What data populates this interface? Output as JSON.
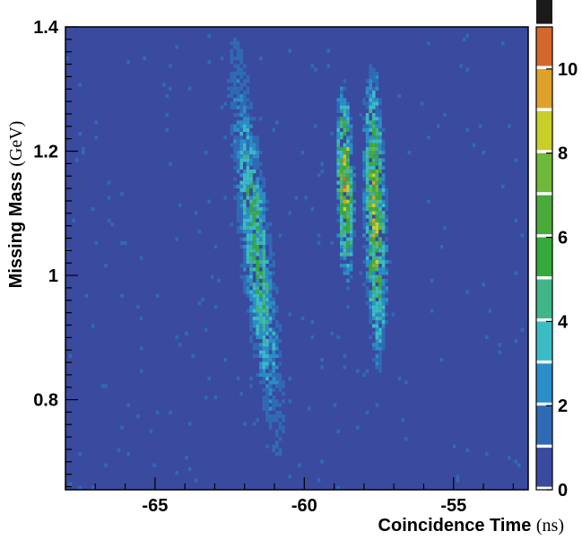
{
  "chart_data": {
    "type": "heatmap",
    "xlabel": "Coincidence Time",
    "xlabel_unit": "(ns)",
    "ylabel": "Missing Mass",
    "ylabel_unit": "(GeV)",
    "xlim": [
      -68,
      -52.5
    ],
    "ylim": [
      0.655,
      1.4
    ],
    "x_ticks": [
      {
        "value": -65,
        "label": "-65"
      },
      {
        "value": -60,
        "label": "-60"
      },
      {
        "value": -55,
        "label": "-55"
      }
    ],
    "y_ticks": [
      {
        "value": 0.8,
        "label": "0.8"
      },
      {
        "value": 1.0,
        "label": "1"
      },
      {
        "value": 1.2,
        "label": "1.2"
      },
      {
        "value": 1.4,
        "label": "1.4"
      }
    ],
    "colorbar": {
      "range": [
        0,
        11
      ],
      "ticks": [
        {
          "value": 0,
          "label": "0"
        },
        {
          "value": 2,
          "label": "2"
        },
        {
          "value": 4,
          "label": "4"
        },
        {
          "value": 6,
          "label": "6"
        },
        {
          "value": 8,
          "label": "8"
        },
        {
          "value": 10,
          "label": "10"
        }
      ],
      "colors": [
        "#3a4a9e",
        "#2f6bb5",
        "#2a8ec9",
        "#3bbcc4",
        "#3fb58a",
        "#35aa3c",
        "#4aab3a",
        "#6fb83a",
        "#c8cf2a",
        "#e0a12a",
        "#d4682a",
        "#1a1a1a"
      ]
    },
    "background_color": "#3a4a9e",
    "bands": [
      {
        "x_center": -61.6,
        "x_width": 0.9,
        "y_center": 1.05,
        "y_height": 0.4,
        "x_shift_per_gev": -2.2,
        "peak": 5
      },
      {
        "x_center": -58.6,
        "x_width": 0.5,
        "y_center": 1.15,
        "y_height": 0.2,
        "x_shift_per_gev": -0.4,
        "peak": 10
      },
      {
        "x_center": -57.6,
        "x_width": 0.65,
        "y_center": 1.1,
        "y_height": 0.3,
        "x_shift_per_gev": -0.5,
        "peak": 8
      }
    ]
  }
}
